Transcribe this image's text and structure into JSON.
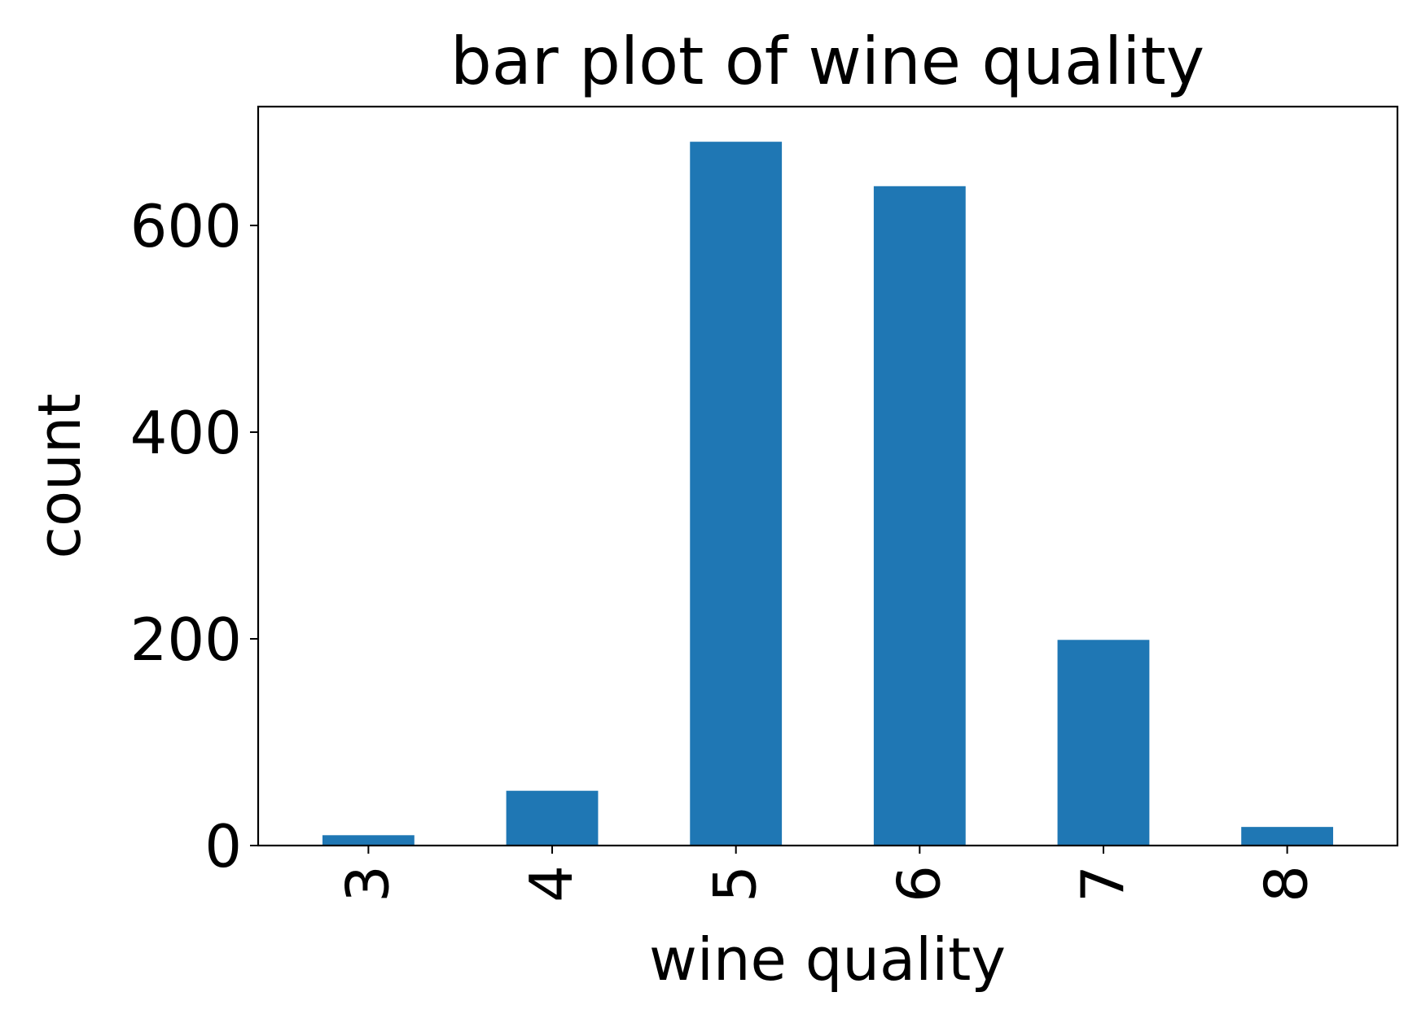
{
  "chart_data": {
    "type": "bar",
    "title": "bar plot of wine quality",
    "xlabel": "wine quality",
    "ylabel": "count",
    "categories": [
      "3",
      "4",
      "5",
      "6",
      "7",
      "8"
    ],
    "values": [
      10,
      53,
      681,
      638,
      199,
      18
    ],
    "ylim": [
      0,
      715
    ],
    "yticks": [
      "0",
      "200",
      "400",
      "600"
    ],
    "ytick_values": [
      0,
      200,
      400,
      600
    ],
    "bar_color": "#1f77b4",
    "grid": false,
    "legend": "none"
  }
}
